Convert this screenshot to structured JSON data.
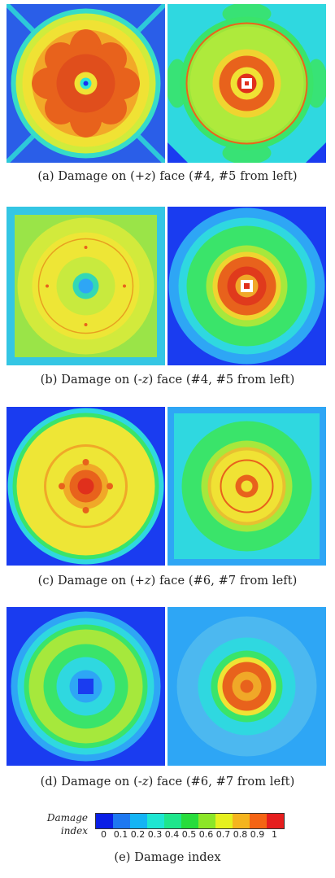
{
  "rows": [
    {
      "label": "(a)",
      "text_pre": "Damage on (+",
      "axis": "z",
      "text_post": ") face (#4, #5 from left)"
    },
    {
      "label": "(b)",
      "text_pre": "Damage on (-",
      "axis": "z",
      "text_post": ") face (#4, #5 from left)"
    },
    {
      "label": "(c)",
      "text_pre": "Damage on (+",
      "axis": "z",
      "text_post": ") face (#6, #7 from left)"
    },
    {
      "label": "(d)",
      "text_pre": "Damage on (-",
      "axis": "z",
      "text_post": ") face (#6, #7 from left)"
    }
  ],
  "legend": {
    "title_line1": "Damage",
    "title_line2": "index",
    "ticks": [
      "0",
      "0.1",
      "0.2",
      "0.3",
      "0.4",
      "0.5",
      "0.6",
      "0.7",
      "0.8",
      "0.9",
      "1"
    ],
    "colors": [
      "#0a1ee6",
      "#1e78f0",
      "#14b4f5",
      "#1ee6d2",
      "#1ee68c",
      "#28dc3c",
      "#8ce628",
      "#e6f01e",
      "#f5b41e",
      "#f56414",
      "#e61e1e"
    ],
    "caption": "(e) Damage index"
  },
  "palette": {
    "blue": "#1a2ef0",
    "light_blue": "#2ea6f5",
    "cyan": "#2fe0e0",
    "green": "#38e85a",
    "yellow_green": "#b8ec3a",
    "yellow": "#f0ec36",
    "orange": "#f08a1e",
    "red_orange": "#e8501c",
    "red": "#e01e1e"
  }
}
